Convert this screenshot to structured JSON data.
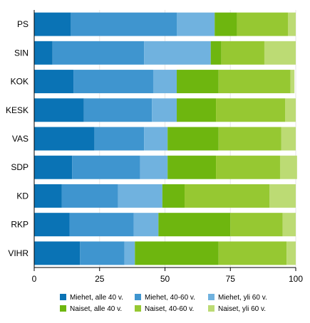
{
  "chart_data": {
    "type": "bar",
    "orientation": "horizontal",
    "stacked": true,
    "categories": [
      "PS",
      "SIN",
      "KOK",
      "KESK",
      "VAS",
      "SDP",
      "KD",
      "RKP",
      "VIHR"
    ],
    "series": [
      {
        "name": "Miehet, alle 40 v.",
        "color": "#0a73b5",
        "values": [
          14,
          7,
          15,
          19,
          23,
          14.5,
          10.5,
          13.5,
          17.5
        ]
      },
      {
        "name": "Miehet, 40-60 v.",
        "color": "#3f95cf",
        "values": [
          40.5,
          35,
          30.5,
          26,
          19,
          26,
          21.5,
          24.5,
          17
        ]
      },
      {
        "name": "Miehet, yli 60 v.",
        "color": "#70b2df",
        "values": [
          14.5,
          25.5,
          9,
          9.5,
          9,
          10.5,
          17,
          9.5,
          4
        ]
      },
      {
        "name": "Naiset, alle 40 v.",
        "color": "#6eb60f",
        "values": [
          8.5,
          4,
          16,
          15,
          19.5,
          18.5,
          8.5,
          27.5,
          32
        ]
      },
      {
        "name": "Naiset, 40-60 v.",
        "color": "#96c832",
        "values": [
          19.5,
          16.5,
          27.5,
          26.5,
          24,
          24.5,
          32.5,
          20,
          26
        ]
      },
      {
        "name": "Naiset, yli 60 v.",
        "color": "#bcdb74",
        "values": [
          3,
          12,
          1.5,
          4,
          5.5,
          6.5,
          10,
          5,
          3.5
        ]
      }
    ],
    "xlim": [
      0,
      100
    ],
    "xticks": [
      0,
      25,
      50,
      75,
      100
    ],
    "xtick_labels": [
      "0",
      "25",
      "50",
      "75",
      "100"
    ],
    "title": "",
    "xlabel": "",
    "ylabel": "",
    "grid": "vertical",
    "legend_position": "bottom"
  }
}
